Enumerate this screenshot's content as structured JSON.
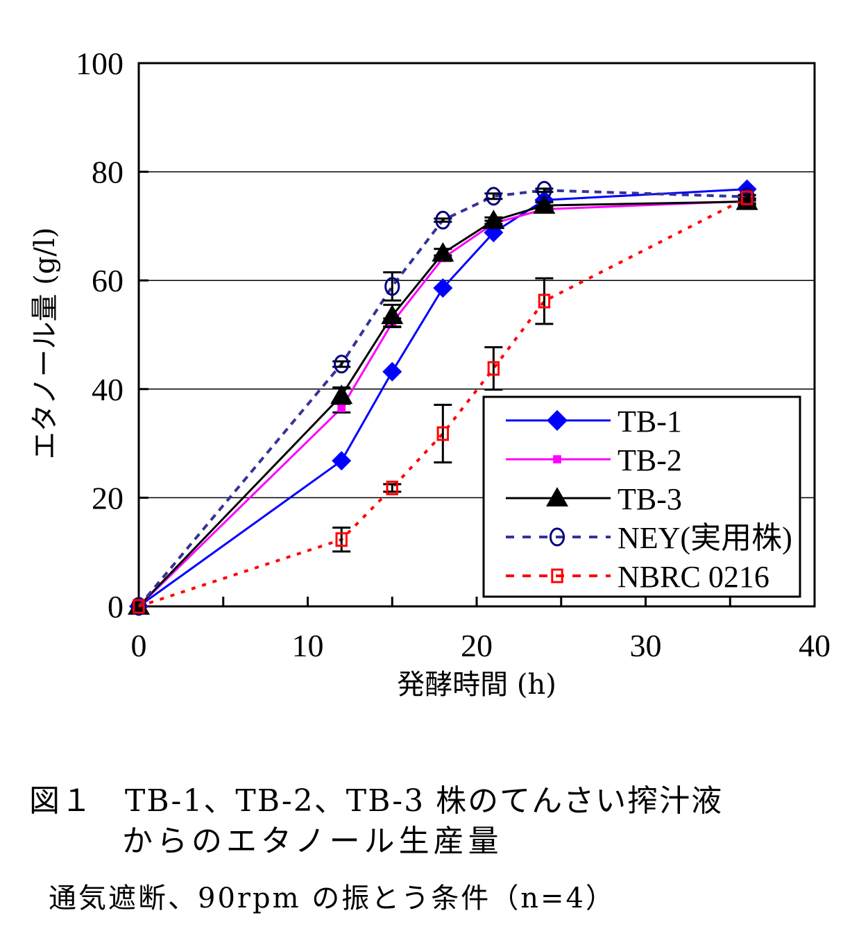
{
  "chart_data": {
    "type": "line",
    "xlabel": "発酵時間 (h)",
    "ylabel": "エタノール量 (g/l)",
    "xlim": [
      0,
      40
    ],
    "ylim": [
      0,
      100
    ],
    "xticks": [
      0,
      10,
      20,
      30,
      40
    ],
    "yticks": [
      0,
      20,
      40,
      60,
      80,
      100
    ],
    "grid": "horizontal",
    "legend_position": "bottom-right",
    "x": [
      0,
      12,
      15,
      18,
      21,
      24,
      36
    ],
    "series": [
      {
        "name": "TB-1",
        "color": "#0000ff",
        "marker": "diamond",
        "line": "solid",
        "values": [
          0,
          26.8,
          43.2,
          58.6,
          68.8,
          74.8,
          76.8
        ],
        "errors": [
          0,
          0,
          0,
          0,
          0,
          0,
          0
        ]
      },
      {
        "name": "TB-2",
        "color": "#ff00ff",
        "marker": "square",
        "line": "solid",
        "values": [
          0,
          36.5,
          52.2,
          64.1,
          70.5,
          73.1,
          74.6
        ],
        "errors": [
          0,
          0.8,
          0.8,
          0.5,
          0.5,
          0.5,
          0.4
        ]
      },
      {
        "name": "TB-3",
        "color": "#000000",
        "marker": "triangle",
        "line": "solid",
        "values": [
          0,
          38.8,
          53.5,
          65.0,
          71.0,
          73.8,
          74.5
        ],
        "errors": [
          0,
          1.5,
          2.0,
          0.8,
          0.6,
          0.6,
          0.6
        ]
      },
      {
        "name": "NEY(実用株)",
        "color": "#333399",
        "marker": "circle-open",
        "marker_color": "#000080",
        "line": "dashed",
        "values": [
          0,
          44.6,
          58.9,
          71.1,
          75.5,
          76.6,
          75.4
        ],
        "errors": [
          0,
          0.5,
          2.6,
          0.3,
          0.5,
          0.3,
          0.3
        ]
      },
      {
        "name": "NBRC 0216",
        "color": "#ff0000",
        "marker": "square-open",
        "line": "dotted",
        "values": [
          0,
          12.3,
          21.8,
          31.8,
          43.8,
          56.2,
          75.2
        ],
        "errors": [
          0,
          2.2,
          0.7,
          5.3,
          3.9,
          4.2,
          0.5
        ]
      }
    ]
  },
  "captions": {
    "figure_title_line1": "図１　TB-1、TB-2、TB-3 株のてんさい搾汁液",
    "figure_title_line2": "からのエタノール生産量",
    "conditions": "通気遮断、90rpm の振とう条件（n=4）"
  }
}
